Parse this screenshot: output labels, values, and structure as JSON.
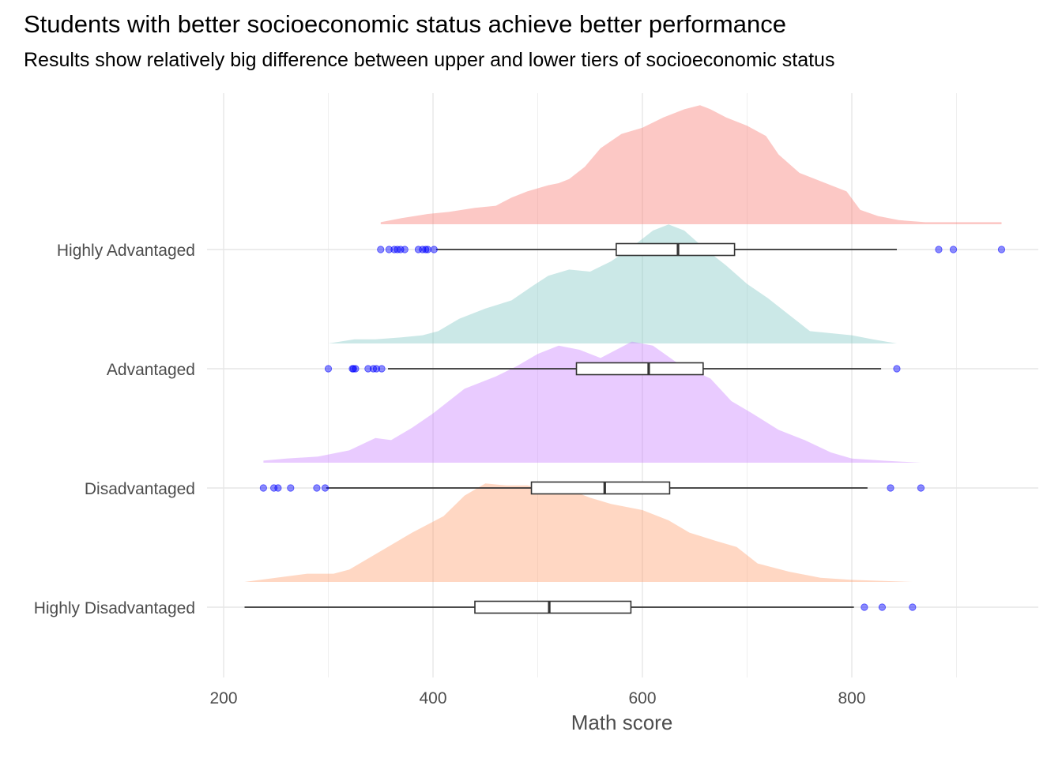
{
  "chart_data": {
    "type": "raincloud",
    "title": "Students with better socioeconomic status achieve better performance",
    "subtitle": "Results show relatively big difference between upper and lower tiers of socioeconomic status",
    "xlabel": "Math score",
    "ylabel": "",
    "xlim": [
      190,
      970
    ],
    "x_ticks": [
      200,
      400,
      600,
      800
    ],
    "grid": true,
    "outlier_color": "#0000ff",
    "categories": [
      "Highly Advantaged",
      "Advantaged",
      "Disadvantaged",
      "Highly Disadvantaged"
    ],
    "series": [
      {
        "name": "Highly Advantaged",
        "color": "#f8766d",
        "box": {
          "min": 403,
          "q1": 575,
          "median": 634,
          "q3": 688,
          "max": 843
        },
        "outliers": [
          350,
          358,
          363,
          366,
          369,
          373,
          386,
          390,
          393,
          395,
          401,
          883,
          897,
          943
        ],
        "density": [
          [
            350,
            0.01
          ],
          [
            370,
            0.03
          ],
          [
            395,
            0.05
          ],
          [
            415,
            0.06
          ],
          [
            440,
            0.08
          ],
          [
            460,
            0.09
          ],
          [
            475,
            0.13
          ],
          [
            490,
            0.16
          ],
          [
            510,
            0.19
          ],
          [
            520,
            0.2
          ],
          [
            530,
            0.22
          ],
          [
            545,
            0.28
          ],
          [
            560,
            0.37
          ],
          [
            580,
            0.44
          ],
          [
            600,
            0.47
          ],
          [
            620,
            0.52
          ],
          [
            640,
            0.56
          ],
          [
            655,
            0.58
          ],
          [
            665,
            0.56
          ],
          [
            680,
            0.52
          ],
          [
            700,
            0.48
          ],
          [
            718,
            0.43
          ],
          [
            730,
            0.34
          ],
          [
            750,
            0.25
          ],
          [
            775,
            0.2
          ],
          [
            795,
            0.16
          ],
          [
            808,
            0.07
          ],
          [
            825,
            0.04
          ],
          [
            845,
            0.02
          ],
          [
            870,
            0.01
          ],
          [
            943,
            0.01
          ]
        ]
      },
      {
        "name": "Advantaged",
        "color": "#7cc6c2",
        "box": {
          "min": 357,
          "q1": 537,
          "median": 606,
          "q3": 658,
          "max": 828
        },
        "outliers": [
          300,
          323,
          324,
          326,
          338,
          343,
          346,
          351,
          843
        ],
        "density": [
          [
            300,
            0.0
          ],
          [
            325,
            0.02
          ],
          [
            345,
            0.02
          ],
          [
            370,
            0.03
          ],
          [
            390,
            0.04
          ],
          [
            405,
            0.06
          ],
          [
            425,
            0.12
          ],
          [
            450,
            0.17
          ],
          [
            475,
            0.21
          ],
          [
            495,
            0.28
          ],
          [
            510,
            0.33
          ],
          [
            530,
            0.36
          ],
          [
            550,
            0.35
          ],
          [
            570,
            0.4
          ],
          [
            590,
            0.47
          ],
          [
            610,
            0.55
          ],
          [
            625,
            0.58
          ],
          [
            640,
            0.55
          ],
          [
            660,
            0.46
          ],
          [
            680,
            0.38
          ],
          [
            700,
            0.29
          ],
          [
            720,
            0.22
          ],
          [
            740,
            0.14
          ],
          [
            760,
            0.06
          ],
          [
            780,
            0.05
          ],
          [
            800,
            0.04
          ],
          [
            820,
            0.02
          ],
          [
            843,
            0.0
          ]
        ]
      },
      {
        "name": "Disadvantaged",
        "color": "#c77cff",
        "box": {
          "min": 298,
          "q1": 494,
          "median": 564,
          "q3": 626,
          "max": 815
        },
        "outliers": [
          238,
          248,
          252,
          264,
          289,
          297,
          837,
          866
        ],
        "density": [
          [
            238,
            0.01
          ],
          [
            260,
            0.02
          ],
          [
            290,
            0.03
          ],
          [
            320,
            0.06
          ],
          [
            345,
            0.12
          ],
          [
            360,
            0.11
          ],
          [
            380,
            0.17
          ],
          [
            400,
            0.24
          ],
          [
            430,
            0.36
          ],
          [
            460,
            0.42
          ],
          [
            480,
            0.47
          ],
          [
            500,
            0.53
          ],
          [
            520,
            0.57
          ],
          [
            540,
            0.55
          ],
          [
            560,
            0.51
          ],
          [
            575,
            0.55
          ],
          [
            590,
            0.59
          ],
          [
            610,
            0.57
          ],
          [
            635,
            0.48
          ],
          [
            665,
            0.41
          ],
          [
            685,
            0.3
          ],
          [
            705,
            0.24
          ],
          [
            730,
            0.16
          ],
          [
            755,
            0.11
          ],
          [
            780,
            0.05
          ],
          [
            800,
            0.02
          ],
          [
            830,
            0.01
          ],
          [
            866,
            0.0
          ]
        ]
      },
      {
        "name": "Highly Disadvantaged",
        "color": "#ff9a6a",
        "box": {
          "min": 220,
          "q1": 440,
          "median": 511,
          "q3": 589,
          "max": 802
        },
        "outliers": [
          812,
          829,
          858
        ],
        "density": [
          [
            220,
            0.0
          ],
          [
            250,
            0.02
          ],
          [
            280,
            0.04
          ],
          [
            305,
            0.04
          ],
          [
            320,
            0.06
          ],
          [
            350,
            0.15
          ],
          [
            380,
            0.24
          ],
          [
            410,
            0.32
          ],
          [
            430,
            0.42
          ],
          [
            450,
            0.48
          ],
          [
            470,
            0.47
          ],
          [
            490,
            0.47
          ],
          [
            510,
            0.45
          ],
          [
            530,
            0.45
          ],
          [
            550,
            0.41
          ],
          [
            570,
            0.38
          ],
          [
            600,
            0.35
          ],
          [
            625,
            0.3
          ],
          [
            645,
            0.24
          ],
          [
            670,
            0.2
          ],
          [
            690,
            0.17
          ],
          [
            710,
            0.09
          ],
          [
            740,
            0.05
          ],
          [
            770,
            0.02
          ],
          [
            800,
            0.01
          ],
          [
            858,
            0.0
          ]
        ]
      }
    ]
  }
}
